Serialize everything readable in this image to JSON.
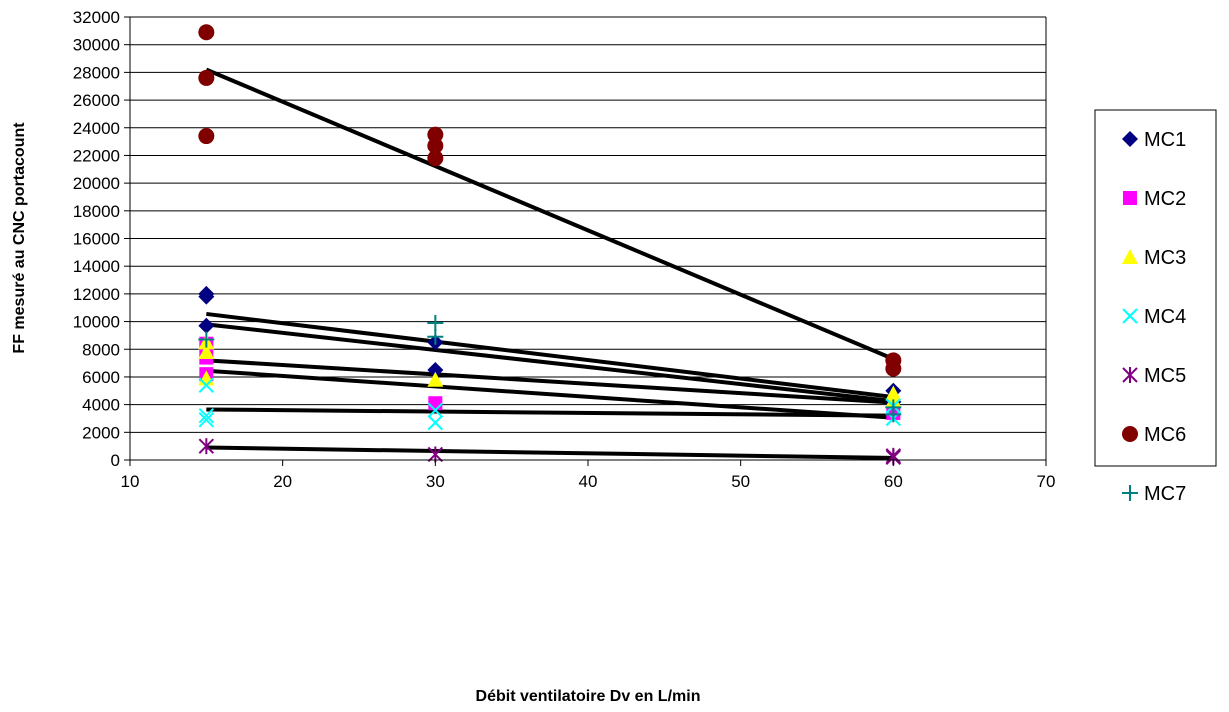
{
  "chart_data": {
    "type": "scatter",
    "title": "",
    "xlabel": "Débit ventilatoire Dv en L/min",
    "ylabel": "FF mesuré au CNC portacount",
    "xlim": [
      10,
      70
    ],
    "ylim": [
      0,
      32000
    ],
    "xticks": [
      10,
      20,
      30,
      40,
      50,
      60,
      70
    ],
    "yticks": [
      0,
      2000,
      4000,
      6000,
      8000,
      10000,
      12000,
      14000,
      16000,
      18000,
      20000,
      22000,
      24000,
      26000,
      28000,
      30000,
      32000
    ],
    "grid": "horizontal",
    "legend_position": "right",
    "series": [
      {
        "name": "MC1",
        "marker": "diamond",
        "color": "#000080",
        "points": [
          [
            15,
            12000
          ],
          [
            15,
            11800
          ],
          [
            15,
            9700
          ],
          [
            30,
            8500
          ],
          [
            30,
            6500
          ],
          [
            60,
            5000
          ],
          [
            60,
            4200
          ]
        ]
      },
      {
        "name": "MC2",
        "marker": "square",
        "color": "#ff00ff",
        "points": [
          [
            15,
            8400
          ],
          [
            15,
            7400
          ],
          [
            15,
            6200
          ],
          [
            30,
            4100
          ],
          [
            60,
            3400
          ]
        ]
      },
      {
        "name": "MC3",
        "marker": "triangle",
        "color": "#ffff00",
        "points": [
          [
            15,
            8500
          ],
          [
            15,
            7800
          ],
          [
            15,
            5900
          ],
          [
            30,
            5800
          ],
          [
            60,
            4800
          ],
          [
            60,
            4300
          ]
        ]
      },
      {
        "name": "MC4",
        "marker": "x",
        "color": "#00ffff",
        "points": [
          [
            15,
            5400
          ],
          [
            15,
            3200
          ],
          [
            15,
            2900
          ],
          [
            30,
            3600
          ],
          [
            30,
            2700
          ],
          [
            60,
            3000
          ],
          [
            60,
            3900
          ]
        ]
      },
      {
        "name": "MC5",
        "marker": "star",
        "color": "#800080",
        "points": [
          [
            15,
            1000
          ],
          [
            30,
            400
          ],
          [
            60,
            200
          ],
          [
            60,
            300
          ]
        ]
      },
      {
        "name": "MC6",
        "marker": "circle",
        "color": "#800000",
        "points": [
          [
            15,
            30900
          ],
          [
            15,
            27600
          ],
          [
            15,
            23400
          ],
          [
            30,
            23500
          ],
          [
            30,
            22700
          ],
          [
            30,
            21800
          ],
          [
            60,
            7200
          ],
          [
            60,
            6600
          ]
        ]
      },
      {
        "name": "MC7",
        "marker": "plus",
        "color": "#008080",
        "points": [
          [
            15,
            8700
          ],
          [
            30,
            9900
          ],
          [
            30,
            8900
          ],
          [
            60,
            3800
          ],
          [
            60,
            3300
          ]
        ]
      }
    ],
    "trendlines": [
      {
        "from": [
          15,
          28200
        ],
        "to": [
          60,
          7300
        ]
      },
      {
        "from": [
          15,
          10550
        ],
        "to": [
          60,
          4550
        ]
      },
      {
        "from": [
          15,
          9800
        ],
        "to": [
          60,
          4250
        ]
      },
      {
        "from": [
          15,
          7200
        ],
        "to": [
          60,
          4150
        ]
      },
      {
        "from": [
          15,
          6450
        ],
        "to": [
          60,
          3050
        ]
      },
      {
        "from": [
          15,
          3650
        ],
        "to": [
          60,
          3200
        ]
      },
      {
        "from": [
          15,
          900
        ],
        "to": [
          60,
          150
        ]
      }
    ]
  }
}
